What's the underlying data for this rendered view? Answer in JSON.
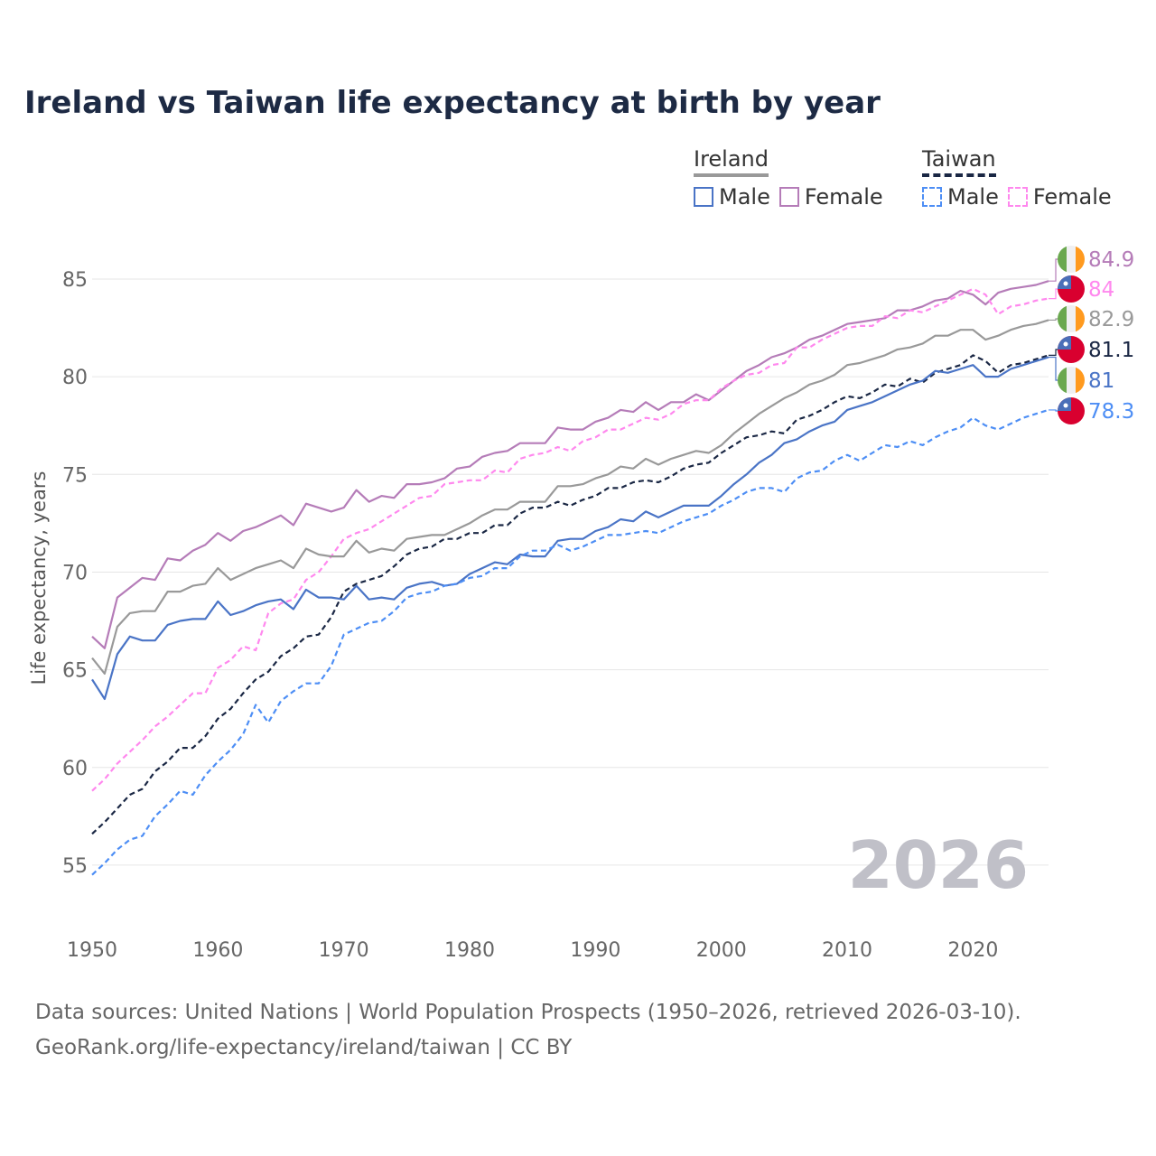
{
  "chart_data": {
    "type": "line",
    "title": "Ireland vs Taiwan life expectancy at birth by year",
    "xlabel": "",
    "ylabel": "Life expectancy, years",
    "xlim": [
      1950,
      2026
    ],
    "ylim": [
      53,
      87
    ],
    "x_ticks": [
      "1950",
      "1960",
      "1970",
      "1980",
      "1990",
      "2000",
      "2010",
      "2020"
    ],
    "y_ticks": [
      "55",
      "60",
      "65",
      "70",
      "75",
      "80",
      "85"
    ],
    "grid": true,
    "year_start": 1950,
    "watermark": "2026",
    "legend": {
      "placement": "top-right",
      "groups": [
        {
          "name": "Ireland",
          "items": [
            "Male",
            "Female"
          ]
        },
        {
          "name": "Taiwan",
          "items": [
            "Male",
            "Female"
          ]
        }
      ]
    },
    "series": [
      {
        "name": "Ireland Female",
        "country": "Ireland",
        "color": "#b57cb8",
        "dash": false,
        "end_label": "84.9",
        "values": [
          66.7,
          66.1,
          68.7,
          69.2,
          69.7,
          69.6,
          70.7,
          70.6,
          71.1,
          71.4,
          72.0,
          71.6,
          72.1,
          72.3,
          72.6,
          72.9,
          72.4,
          73.5,
          73.3,
          73.1,
          73.3,
          74.2,
          73.6,
          73.9,
          73.8,
          74.5,
          74.5,
          74.6,
          74.8,
          75.3,
          75.4,
          75.9,
          76.1,
          76.2,
          76.6,
          76.6,
          76.6,
          77.4,
          77.3,
          77.3,
          77.7,
          77.9,
          78.3,
          78.2,
          78.7,
          78.3,
          78.7,
          78.7,
          79.1,
          78.8,
          79.3,
          79.8,
          80.3,
          80.6,
          81.0,
          81.2,
          81.5,
          81.9,
          82.1,
          82.4,
          82.7,
          82.8,
          82.9,
          83.0,
          83.4,
          83.4,
          83.6,
          83.9,
          84.0,
          84.4,
          84.2,
          83.7,
          84.3,
          84.5,
          84.6,
          84.7,
          84.9
        ]
      },
      {
        "name": "Taiwan Female",
        "country": "Taiwan",
        "color": "#ff88ee",
        "dash": true,
        "end_label": "84",
        "values": [
          58.8,
          59.4,
          60.2,
          60.8,
          61.4,
          62.1,
          62.6,
          63.2,
          63.8,
          63.8,
          65.1,
          65.5,
          66.2,
          66.0,
          67.9,
          68.4,
          68.6,
          69.6,
          70.0,
          70.8,
          71.7,
          72.0,
          72.2,
          72.6,
          73.0,
          73.4,
          73.8,
          73.9,
          74.5,
          74.6,
          74.7,
          74.7,
          75.2,
          75.1,
          75.8,
          76.0,
          76.1,
          76.4,
          76.2,
          76.7,
          76.9,
          77.3,
          77.3,
          77.6,
          77.9,
          77.8,
          78.1,
          78.6,
          78.8,
          78.8,
          79.4,
          79.8,
          80.1,
          80.2,
          80.6,
          80.7,
          81.5,
          81.5,
          81.9,
          82.2,
          82.5,
          82.6,
          82.6,
          83.1,
          83.0,
          83.4,
          83.3,
          83.6,
          83.9,
          84.2,
          84.5,
          84.2,
          83.2,
          83.6,
          83.7,
          83.9,
          84.0
        ]
      },
      {
        "name": "Ireland",
        "country": "Ireland",
        "color": "#999999",
        "dash": false,
        "end_label": "82.9",
        "values": [
          65.6,
          64.8,
          67.2,
          67.9,
          68.0,
          68.0,
          69.0,
          69.0,
          69.3,
          69.4,
          70.2,
          69.6,
          69.9,
          70.2,
          70.4,
          70.6,
          70.2,
          71.2,
          70.9,
          70.8,
          70.8,
          71.6,
          71.0,
          71.2,
          71.1,
          71.7,
          71.8,
          71.9,
          71.9,
          72.2,
          72.5,
          72.9,
          73.2,
          73.2,
          73.6,
          73.6,
          73.6,
          74.4,
          74.4,
          74.5,
          74.8,
          75.0,
          75.4,
          75.3,
          75.8,
          75.5,
          75.8,
          76.0,
          76.2,
          76.1,
          76.5,
          77.1,
          77.6,
          78.1,
          78.5,
          78.9,
          79.2,
          79.6,
          79.8,
          80.1,
          80.6,
          80.7,
          80.9,
          81.1,
          81.4,
          81.5,
          81.7,
          82.1,
          82.1,
          82.4,
          82.4,
          81.9,
          82.1,
          82.4,
          82.6,
          82.7,
          82.9
        ]
      },
      {
        "name": "Taiwan",
        "country": "Taiwan",
        "color": "#1a2744",
        "dash": true,
        "end_label": "81.1",
        "values": [
          56.6,
          57.2,
          57.9,
          58.6,
          58.9,
          59.8,
          60.3,
          61.0,
          61.0,
          61.6,
          62.5,
          63.0,
          63.8,
          64.5,
          64.9,
          65.7,
          66.1,
          66.7,
          66.8,
          67.7,
          69.0,
          69.4,
          69.6,
          69.8,
          70.3,
          70.9,
          71.2,
          71.3,
          71.7,
          71.7,
          72.0,
          72.0,
          72.4,
          72.4,
          73.0,
          73.3,
          73.3,
          73.6,
          73.4,
          73.7,
          73.9,
          74.3,
          74.3,
          74.6,
          74.7,
          74.6,
          74.9,
          75.3,
          75.5,
          75.6,
          76.1,
          76.5,
          76.9,
          77.0,
          77.2,
          77.1,
          77.8,
          78.0,
          78.3,
          78.7,
          79.0,
          78.9,
          79.2,
          79.6,
          79.5,
          79.9,
          79.7,
          80.2,
          80.4,
          80.6,
          81.1,
          80.8,
          80.2,
          80.6,
          80.7,
          80.9,
          81.1
        ]
      },
      {
        "name": "Ireland Male",
        "country": "Ireland",
        "color": "#4a74c6",
        "dash": false,
        "end_label": "81",
        "values": [
          64.5,
          63.5,
          65.8,
          66.7,
          66.5,
          66.5,
          67.3,
          67.5,
          67.6,
          67.6,
          68.5,
          67.8,
          68.0,
          68.3,
          68.5,
          68.6,
          68.1,
          69.1,
          68.7,
          68.7,
          68.6,
          69.3,
          68.6,
          68.7,
          68.6,
          69.2,
          69.4,
          69.5,
          69.3,
          69.4,
          69.9,
          70.2,
          70.5,
          70.4,
          70.9,
          70.8,
          70.8,
          71.6,
          71.7,
          71.7,
          72.1,
          72.3,
          72.7,
          72.6,
          73.1,
          72.8,
          73.1,
          73.4,
          73.4,
          73.4,
          73.9,
          74.5,
          75.0,
          75.6,
          76.0,
          76.6,
          76.8,
          77.2,
          77.5,
          77.7,
          78.3,
          78.5,
          78.7,
          79.0,
          79.3,
          79.6,
          79.8,
          80.3,
          80.2,
          80.4,
          80.6,
          80.0,
          80.0,
          80.4,
          80.6,
          80.8,
          81.0
        ]
      },
      {
        "name": "Taiwan Male",
        "country": "Taiwan",
        "color": "#4d8ef5",
        "dash": true,
        "end_label": "78.3",
        "values": [
          54.5,
          55.1,
          55.8,
          56.3,
          56.5,
          57.5,
          58.1,
          58.8,
          58.6,
          59.6,
          60.3,
          60.9,
          61.7,
          63.2,
          62.3,
          63.4,
          63.9,
          64.3,
          64.3,
          65.2,
          66.8,
          67.1,
          67.4,
          67.5,
          68.0,
          68.7,
          68.9,
          69.0,
          69.3,
          69.4,
          69.7,
          69.8,
          70.2,
          70.2,
          70.8,
          71.1,
          71.1,
          71.4,
          71.1,
          71.3,
          71.6,
          71.9,
          71.9,
          72.0,
          72.1,
          72.0,
          72.3,
          72.6,
          72.8,
          73.0,
          73.4,
          73.7,
          74.1,
          74.3,
          74.3,
          74.1,
          74.8,
          75.1,
          75.2,
          75.7,
          76.0,
          75.7,
          76.1,
          76.5,
          76.4,
          76.7,
          76.5,
          76.9,
          77.2,
          77.4,
          77.9,
          77.5,
          77.3,
          77.6,
          77.9,
          78.1,
          78.3
        ]
      }
    ]
  },
  "legend_labels": {
    "ireland": "Ireland",
    "taiwan": "Taiwan",
    "male": "Male",
    "female": "Female"
  },
  "footer": {
    "line1": "Data sources: United Nations | World Population Prospects (1950–2026, retrieved 2026-03-10).",
    "line2": "GeoRank.org/life-expectancy/ireland/taiwan | CC BY"
  }
}
